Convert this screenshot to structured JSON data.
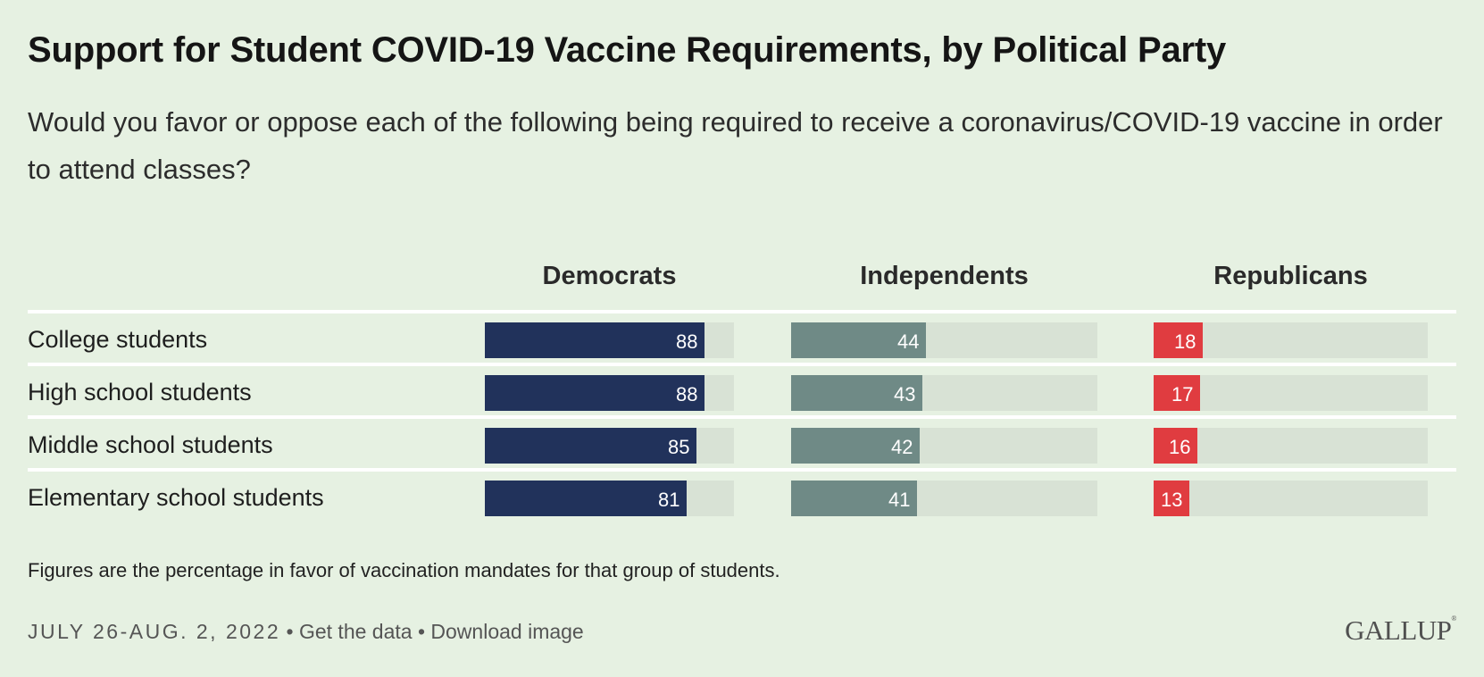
{
  "title": "Support for Student COVID-19 Vaccine Requirements, by Political Party",
  "subtitle": "Would you favor or oppose each of the following being required to receive a coronavirus/COVID-19 vaccine in order to attend classes?",
  "footnote": "Figures are the percentage in favor of vaccination mandates for that group of students.",
  "footer": {
    "date": "JULY 26-AUG. 2, 2022",
    "separator": "•",
    "get_data": "Get the data",
    "download_image": "Download image",
    "logo": "GALLUP"
  },
  "colors": {
    "Democrats": "#21325b",
    "Independents": "#6f8a86",
    "Republicans": "#e03c40",
    "track": "#d8e2d5"
  },
  "chart_data": {
    "type": "bar",
    "orientation": "horizontal",
    "categories": [
      "College students",
      "High school students",
      "Middle school students",
      "Elementary school students"
    ],
    "series": [
      {
        "name": "Democrats",
        "values": [
          88,
          88,
          85,
          81
        ]
      },
      {
        "name": "Independents",
        "values": [
          44,
          43,
          42,
          41
        ]
      },
      {
        "name": "Republicans",
        "values": [
          18,
          17,
          16,
          13
        ]
      }
    ],
    "xlim": [
      0,
      100
    ],
    "grid": false,
    "legend": "column-headers"
  }
}
